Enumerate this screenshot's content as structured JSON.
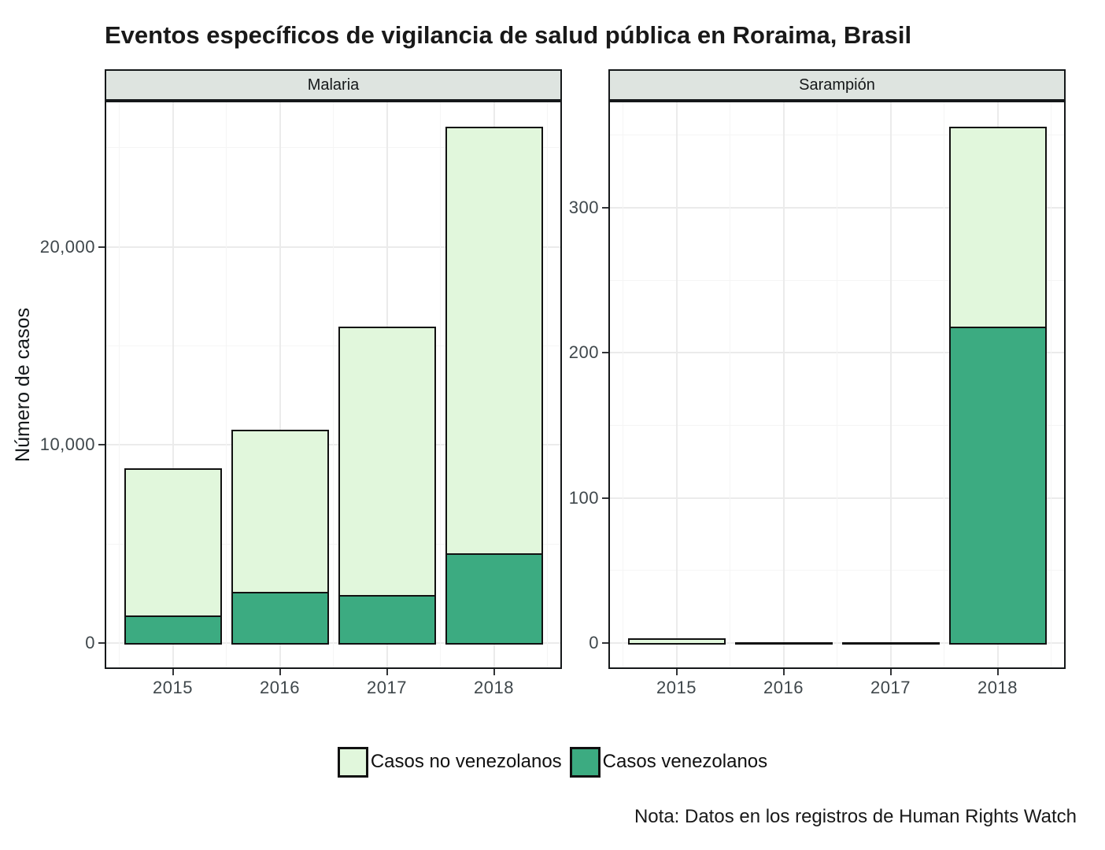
{
  "title": "Eventos específicos de vigilancia de salud pública en Roraima, Brasil",
  "ylabel": "Número de casos",
  "note": "Nota: Datos en los registros de Human Rights Watch",
  "legend": [
    {
      "label": "Casos no venezolanos",
      "color": "#E1F7DC"
    },
    {
      "label": "Casos venezolanos",
      "color": "#3CAB81"
    }
  ],
  "colors": {
    "bar_fill_light": "#E1F7DC",
    "bar_fill_dark": "#3CAB81",
    "bar_outline": "#111111",
    "strip_bg": "#DEE4E0",
    "grid_major": "#EBEBEB",
    "grid_minor": "#F5F5F5",
    "axis_text": "#3F474B",
    "text": "#191919"
  },
  "chart_data": [
    {
      "type": "bar",
      "stacked": true,
      "facet": "Malaria",
      "categories": [
        "2015",
        "2016",
        "2017",
        "2018"
      ],
      "series": [
        {
          "name": "Casos no venezolanos",
          "values": [
            7450,
            8200,
            13550,
            21550
          ]
        },
        {
          "name": "Casos venezolanos",
          "values": [
            1300,
            2500,
            2350,
            4450
          ]
        }
      ],
      "totals": [
        8750,
        10700,
        15900,
        26000
      ],
      "stack_order_bottom_to_top": [
        "Casos venezolanos",
        "Casos no venezolanos"
      ],
      "ylim": [
        0,
        26000
      ],
      "yticks": [
        0,
        10000,
        20000
      ],
      "ytick_labels": [
        "0",
        "10,000",
        "20,000"
      ],
      "yticks_minor": [
        5000,
        15000,
        25000
      ],
      "grid": true,
      "legend_position": "bottom"
    },
    {
      "type": "bar",
      "stacked": true,
      "facet": "Sarampión",
      "categories": [
        "2015",
        "2016",
        "2017",
        "2018"
      ],
      "series": [
        {
          "name": "Casos no venezolanos",
          "values": [
            2,
            0,
            0,
            138
          ]
        },
        {
          "name": "Casos venezolanos",
          "values": [
            0,
            0,
            0,
            217
          ]
        }
      ],
      "totals": [
        2,
        0,
        0,
        355
      ],
      "stack_order_bottom_to_top": [
        "Casos venezolanos",
        "Casos no venezolanos"
      ],
      "ylim": [
        0,
        355
      ],
      "yticks": [
        0,
        100,
        200,
        300
      ],
      "ytick_labels": [
        "0",
        "100",
        "200",
        "300"
      ],
      "yticks_minor": [
        50,
        150,
        250,
        350
      ],
      "grid": true,
      "legend_position": "bottom"
    }
  ]
}
